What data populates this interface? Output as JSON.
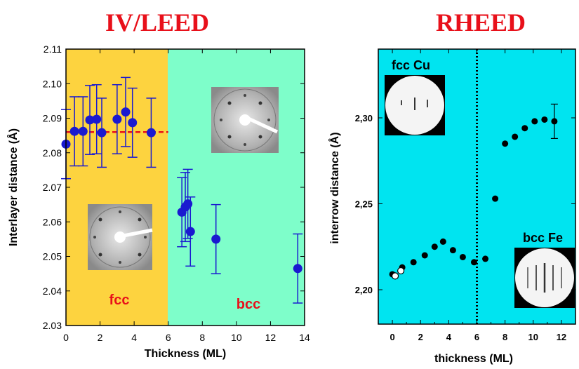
{
  "chart_data": [
    {
      "type": "scatter",
      "title": "IV/LEED",
      "xlabel": "Thickness (ML)",
      "ylabel": "Interlayer distance (Å)",
      "xlim": [
        0,
        14
      ],
      "ylim": [
        2.03,
        2.11
      ],
      "xticks": [
        0,
        2,
        4,
        6,
        8,
        10,
        12,
        14
      ],
      "xtick_labels": [
        "0",
        "2",
        "4",
        "6",
        "8",
        "10",
        "12",
        "14"
      ],
      "yticks": [
        2.03,
        2.04,
        2.05,
        2.06,
        2.07,
        2.08,
        2.09,
        2.1,
        2.11
      ],
      "ytick_labels": [
        "2.03",
        "2.04",
        "2.05",
        "2.06",
        "2.07",
        "2.08",
        "2.09",
        "2.10",
        "2.11"
      ],
      "grid": false,
      "regions": [
        {
          "label": "fcc",
          "x_range": [
            0,
            6
          ],
          "color": "#FDD33F"
        },
        {
          "label": "bcc",
          "x_range": [
            6,
            14
          ],
          "color": "#7EFECA"
        }
      ],
      "reference_line": {
        "y": 2.086,
        "x_range": [
          0,
          6
        ],
        "color": "#E8101A",
        "style": "dashed"
      },
      "series": [
        {
          "marker_color": "#1A1AD0",
          "x": [
            0.0,
            0.5,
            1.0,
            1.4,
            1.8,
            2.1,
            3.0,
            3.5,
            3.9,
            5.0,
            6.8,
            7.0,
            7.15,
            7.3,
            8.8,
            13.6
          ],
          "y": [
            2.0825,
            2.0862,
            2.0862,
            2.0895,
            2.0897,
            2.0858,
            2.0897,
            2.0918,
            2.0887,
            2.0858,
            2.0628,
            2.0643,
            2.0652,
            2.0572,
            2.055,
            2.0465
          ],
          "error": [
            0.01,
            0.01,
            0.01,
            0.01,
            0.01,
            0.01,
            0.01,
            0.01,
            0.01,
            0.01,
            0.01,
            0.01,
            0.01,
            0.01,
            0.01,
            0.01
          ]
        }
      ]
    },
    {
      "type": "scatter",
      "title": "RHEED",
      "xlabel": "thickness (ML)",
      "ylabel": "interrow distance (Å)",
      "xlim": [
        -1,
        13
      ],
      "ylim": [
        2.18,
        2.34
      ],
      "xticks": [
        0,
        2,
        4,
        6,
        8,
        10,
        12
      ],
      "xtick_labels": [
        "0",
        "2",
        "4",
        "6",
        "8",
        "10",
        "12"
      ],
      "yticks": [
        2.2,
        2.25,
        2.3
      ],
      "ytick_labels": [
        "2,20",
        "2,25",
        "2,30"
      ],
      "grid": false,
      "background_color": "#00E4F0",
      "vertical_line": {
        "x": 6,
        "style": "dotted"
      },
      "insets": [
        {
          "label": "fcc Cu",
          "position": "top-left"
        },
        {
          "label": "bcc Fe",
          "position": "bottom-right"
        }
      ],
      "series": [
        {
          "marker_color": "#000000",
          "x": [
            0.0,
            0.7,
            1.5,
            2.3,
            3.0,
            3.6,
            4.3,
            5.0,
            5.8,
            6.6,
            7.3,
            8.0,
            8.7,
            9.4,
            10.1,
            10.8,
            11.5
          ],
          "y": [
            2.209,
            2.213,
            2.216,
            2.22,
            2.225,
            2.228,
            2.223,
            2.219,
            2.216,
            2.218,
            2.253,
            2.285,
            2.289,
            2.294,
            2.298,
            2.299,
            2.298
          ],
          "error": [
            0,
            0,
            0,
            0,
            0,
            0,
            0,
            0,
            0,
            0,
            0,
            0,
            0,
            0,
            0,
            0,
            0.01
          ]
        },
        {
          "marker_color": "#FFFFFF",
          "x": [
            0.2,
            0.6
          ],
          "y": [
            2.208,
            2.211
          ]
        }
      ]
    }
  ]
}
